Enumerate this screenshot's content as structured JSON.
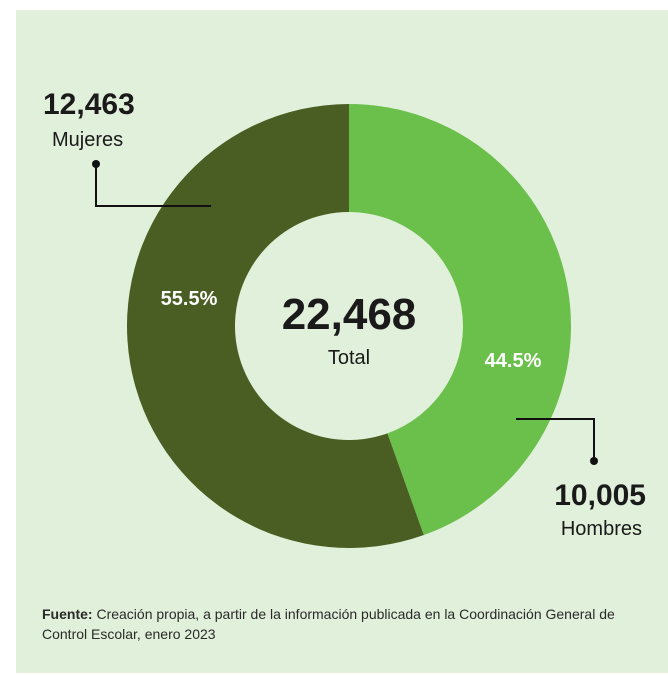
{
  "chart_data": {
    "type": "pie",
    "style": "donut",
    "categories": [
      "Mujeres",
      "Hombres"
    ],
    "values": [
      12463,
      10005
    ],
    "value_labels": [
      "12,463",
      "10,005"
    ],
    "percent_labels": [
      "55.5%",
      "44.5%"
    ],
    "colors": [
      "#4a5e23",
      "#6bbf4b"
    ],
    "total_value": "22,468",
    "total_label": "Total"
  },
  "source": {
    "label": "Fuente:",
    "text": "Creación propia, a partir de la información publicada en la Coordinación General de Control Escolar, enero 2023"
  },
  "colors": {
    "background": "#e1f0da",
    "text": "#1a1a1a"
  }
}
